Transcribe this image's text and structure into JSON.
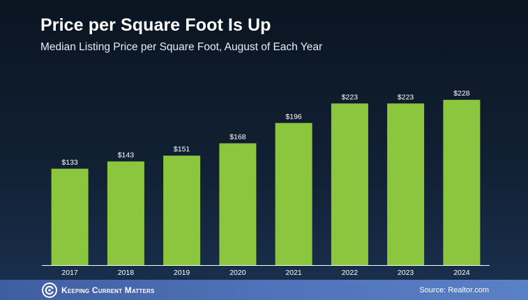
{
  "header": {
    "title": "Price per Square Foot Is Up",
    "subtitle": "Median Listing Price per Square Foot, August of Each Year"
  },
  "footer": {
    "brand": "Keeping Current Matters",
    "source": "Source: Realtor.com",
    "logo_icon": "kcm-logo-icon"
  },
  "colors": {
    "bar": "#8cc63f",
    "axis": "#ffffff",
    "footer_band": "#4a6cb3"
  },
  "chart_data": {
    "type": "bar",
    "categories": [
      "2017",
      "2018",
      "2019",
      "2020",
      "2021",
      "2022",
      "2023",
      "2024"
    ],
    "values": [
      133,
      143,
      151,
      168,
      196,
      223,
      223,
      228
    ],
    "data_labels": [
      "$133",
      "$143",
      "$151",
      "$168",
      "$196",
      "$223",
      "$223",
      "$228"
    ],
    "title": "Price per Square Foot Is Up",
    "subtitle": "Median Listing Price per Square Foot, August of Each Year",
    "xlabel": "",
    "ylabel": "",
    "ylim": [
      0,
      255
    ],
    "grid": false,
    "legend": "none"
  }
}
